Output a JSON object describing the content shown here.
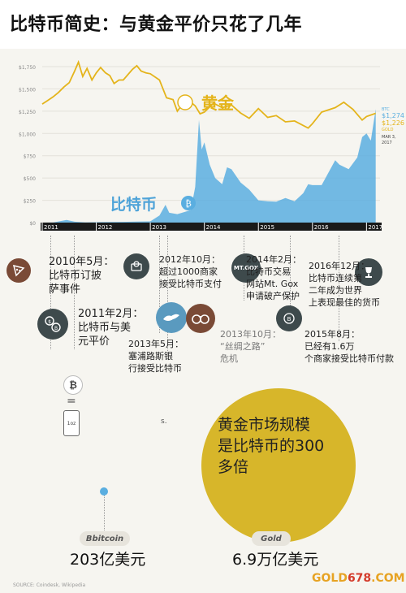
{
  "page_title": "比特币简史：与黄金平价只花了几年",
  "chart_data": {
    "type": "line",
    "title": "",
    "x": [
      "2011",
      "2012",
      "2013",
      "2014",
      "2015",
      "2016",
      "2017"
    ],
    "ylim": [
      0,
      1750
    ],
    "yticks": [
      "$1,750",
      "$1,500",
      "$1,250",
      "$1,000",
      "$750",
      "$500",
      "$250",
      "$0"
    ],
    "series": [
      {
        "name": "黄金",
        "color": "#e4b41b",
        "points": [
          [
            2011.0,
            1330
          ],
          [
            2011.1,
            1370
          ],
          [
            2011.2,
            1410
          ],
          [
            2011.3,
            1460
          ],
          [
            2011.4,
            1520
          ],
          [
            2011.5,
            1570
          ],
          [
            2011.6,
            1700
          ],
          [
            2011.67,
            1800
          ],
          [
            2011.75,
            1640
          ],
          [
            2011.83,
            1730
          ],
          [
            2011.92,
            1600
          ],
          [
            2012.0,
            1680
          ],
          [
            2012.08,
            1740
          ],
          [
            2012.17,
            1680
          ],
          [
            2012.25,
            1650
          ],
          [
            2012.33,
            1560
          ],
          [
            2012.42,
            1600
          ],
          [
            2012.5,
            1600
          ],
          [
            2012.67,
            1720
          ],
          [
            2012.75,
            1760
          ],
          [
            2012.83,
            1700
          ],
          [
            2012.92,
            1680
          ],
          [
            2013.0,
            1670
          ],
          [
            2013.17,
            1600
          ],
          [
            2013.3,
            1400
          ],
          [
            2013.42,
            1380
          ],
          [
            2013.5,
            1250
          ],
          [
            2013.67,
            1390
          ],
          [
            2013.83,
            1310
          ],
          [
            2013.92,
            1220
          ],
          [
            2014.0,
            1240
          ],
          [
            2014.17,
            1340
          ],
          [
            2014.33,
            1290
          ],
          [
            2014.5,
            1320
          ],
          [
            2014.67,
            1230
          ],
          [
            2014.83,
            1170
          ],
          [
            2015.0,
            1280
          ],
          [
            2015.17,
            1180
          ],
          [
            2015.33,
            1200
          ],
          [
            2015.5,
            1130
          ],
          [
            2015.67,
            1140
          ],
          [
            2015.92,
            1060
          ],
          [
            2016.0,
            1110
          ],
          [
            2016.17,
            1240
          ],
          [
            2016.42,
            1290
          ],
          [
            2016.58,
            1350
          ],
          [
            2016.75,
            1270
          ],
          [
            2016.92,
            1150
          ],
          [
            2017.0,
            1190
          ],
          [
            2017.17,
            1226
          ]
        ]
      },
      {
        "name": "比特币",
        "color": "#5aaee0",
        "points": [
          [
            2011.0,
            0.3
          ],
          [
            2011.2,
            1
          ],
          [
            2011.45,
            30
          ],
          [
            2011.6,
            10
          ],
          [
            2011.8,
            3
          ],
          [
            2012.0,
            5
          ],
          [
            2012.5,
            8
          ],
          [
            2012.75,
            12
          ],
          [
            2013.0,
            14
          ],
          [
            2013.17,
            80
          ],
          [
            2013.28,
            200
          ],
          [
            2013.35,
            110
          ],
          [
            2013.5,
            95
          ],
          [
            2013.75,
            140
          ],
          [
            2013.83,
            400
          ],
          [
            2013.9,
            1150
          ],
          [
            2013.95,
            820
          ],
          [
            2014.0,
            900
          ],
          [
            2014.1,
            650
          ],
          [
            2014.2,
            500
          ],
          [
            2014.33,
            430
          ],
          [
            2014.42,
            620
          ],
          [
            2014.5,
            600
          ],
          [
            2014.67,
            450
          ],
          [
            2014.83,
            370
          ],
          [
            2015.0,
            250
          ],
          [
            2015.17,
            240
          ],
          [
            2015.33,
            235
          ],
          [
            2015.5,
            275
          ],
          [
            2015.67,
            240
          ],
          [
            2015.83,
            330
          ],
          [
            2015.92,
            430
          ],
          [
            2016.0,
            420
          ],
          [
            2016.17,
            420
          ],
          [
            2016.42,
            700
          ],
          [
            2016.5,
            650
          ],
          [
            2016.67,
            600
          ],
          [
            2016.83,
            730
          ],
          [
            2016.92,
            960
          ],
          [
            2017.0,
            1000
          ],
          [
            2017.08,
            920
          ],
          [
            2017.17,
            1274
          ]
        ]
      }
    ],
    "gold_label": "黄金",
    "btc_label": "比特币",
    "legend_btc": "BTC",
    "legend_btc_val": "$1,274",
    "legend_gold_val": "$1,226",
    "legend_gold": "GOLD",
    "legend_date": "MAR 3,",
    "legend_year": "2017"
  },
  "timeline": [
    {
      "text": "2010年5月：\n比特币订披\n萨事件"
    },
    {
      "text": "2011年2月：\n比特币与美\n元平价"
    },
    {
      "text": "2012年10月：\n超过1000商家\n接受比特币支付"
    },
    {
      "text": "2013年5月：\n塞浦路斯银\n行接受比特币"
    },
    {
      "text": "2014年2月：\n比特币交易\n网站Mt. Gox\n申请破产保护"
    },
    {
      "text": "2013年10月：\n“丝绸之路”\n危机"
    },
    {
      "text": "2016年12月：\n比特币连续第\n二年成为世界\n上表现最佳的货币"
    },
    {
      "text": "2015年8月：\n已经有1.6万\n个商家接受比特币付款"
    }
  ],
  "icons": {
    "mtgox": "MT.GOX"
  },
  "equation": {
    "equals": "=",
    "coin_label": "1oz",
    "dot_text": "s."
  },
  "gold_circle": {
    "text": "黄金市场规模\n是比特币的300\n多倍"
  },
  "bitcoin_pill": "Bbitcoin",
  "gold_pill": "Gold",
  "bitcoin_value": "203亿美元",
  "gold_value": "6.9万亿美元",
  "source": "SOURCE: Coindesk, Wikipedia",
  "logo_main": "GOLD",
  "logo_num": "678",
  "logo_tail": ".COM",
  "colors": {
    "gold": "#e4b41b",
    "btc": "#5aaee0",
    "circle": "#d7b62a",
    "axis_bg": "#1a1a1a"
  }
}
